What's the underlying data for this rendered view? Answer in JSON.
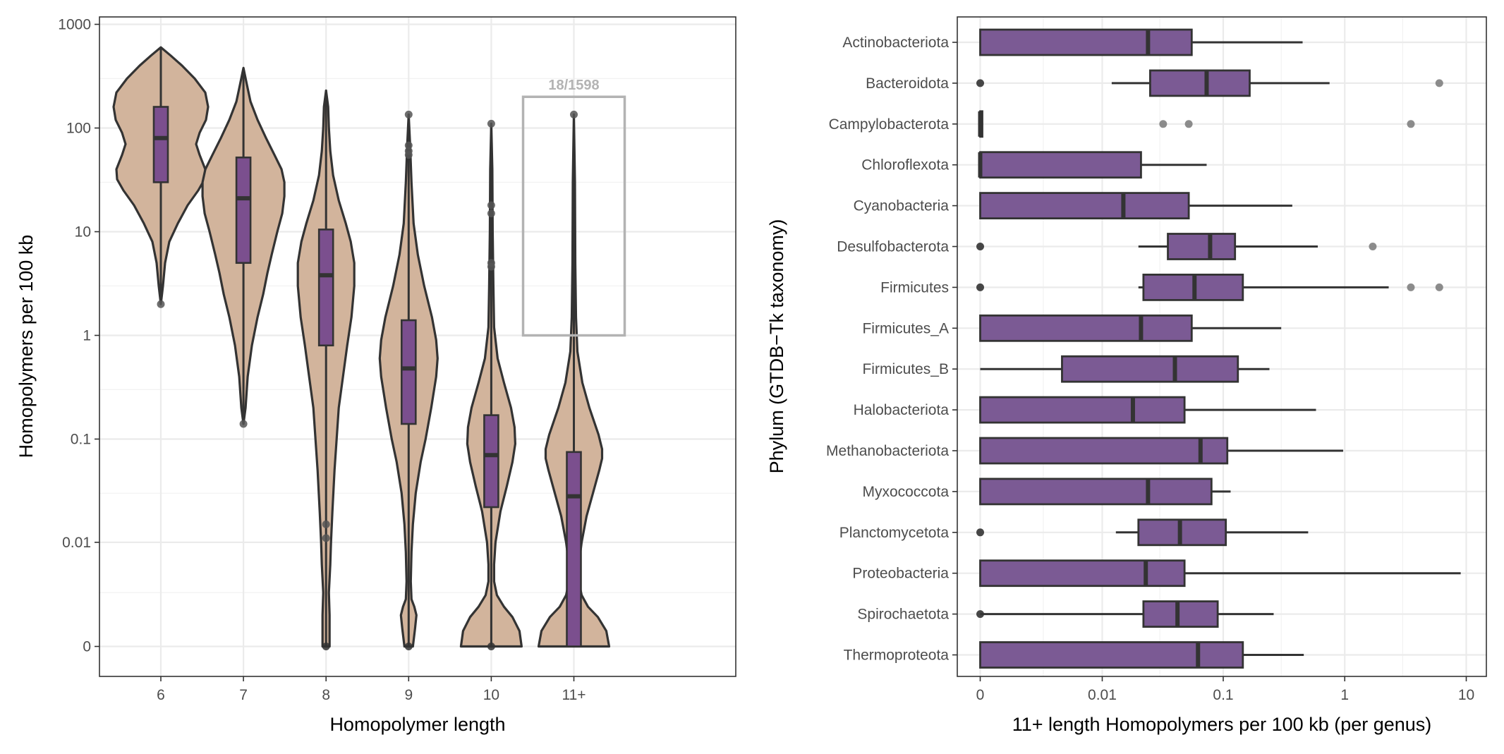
{
  "chart_data": [
    {
      "type": "violin",
      "xlabel": "Homopolymer length",
      "ylabel": "Homopolymers per 100 kb",
      "yscale": "pseudo-log",
      "ylim": [
        0,
        1000
      ],
      "y_ticks": [
        0,
        0.01,
        0.1,
        1,
        10,
        100,
        1000
      ],
      "y_tick_labels": [
        "0",
        "0.01",
        "0.1",
        "1",
        "10",
        "100",
        "1000"
      ],
      "grid": true,
      "colors": {
        "violin_fill": "#d2b49c",
        "box_fill": "#7b4f8e",
        "outline": "#333333",
        "highlight": "#b3b3b3"
      },
      "categories": [
        "6",
        "7",
        "8",
        "9",
        "10",
        "11+"
      ],
      "violins": [
        {
          "category": "6",
          "max": 600,
          "min": 2,
          "box": {
            "q1": 30,
            "median": 80,
            "q3": 160,
            "whisker_low": 2,
            "whisker_high": 600
          },
          "outliers": [
            2
          ]
        },
        {
          "category": "7",
          "max": 380,
          "min": 0.14,
          "box": {
            "q1": 5,
            "median": 21,
            "q3": 52,
            "whisker_low": 0.14,
            "whisker_high": 380
          },
          "outliers": [
            0.14
          ]
        },
        {
          "category": "8",
          "max": 230,
          "min": 0,
          "box": {
            "q1": 0.8,
            "median": 3.8,
            "q3": 10.5,
            "whisker_low": 0,
            "whisker_high": 230
          },
          "outliers": [
            0.015,
            0.011,
            0
          ]
        },
        {
          "category": "9",
          "max": 135,
          "min": 0,
          "box": {
            "q1": 0.14,
            "median": 0.48,
            "q3": 1.4,
            "whisker_low": 0,
            "whisker_high": 135
          },
          "outliers": [
            135,
            68,
            60,
            55,
            0
          ]
        },
        {
          "category": "10",
          "max": 110,
          "min": 0,
          "box": {
            "q1": 0.022,
            "median": 0.07,
            "q3": 0.17,
            "whisker_low": 0,
            "whisker_high": 110
          },
          "outliers": [
            110,
            18,
            15,
            5,
            4.6,
            0
          ]
        },
        {
          "category": "11+",
          "max": 135,
          "min": 0,
          "box": {
            "q1": 0,
            "median": 0.028,
            "q3": 0.075,
            "whisker_low": 0,
            "whisker_high": 135
          },
          "outliers": [
            135
          ]
        }
      ],
      "annotations": [
        {
          "text": "18/1598",
          "category": "11+",
          "box_ylim": [
            1,
            200
          ]
        }
      ]
    },
    {
      "type": "boxplot",
      "orientation": "horizontal",
      "xlabel": "11+ length Homopolymers per 100 kb (per genus)",
      "ylabel": "Phylum (GTDB−Tk taxonomy)",
      "xscale": "pseudo-log",
      "xlim": [
        0,
        10
      ],
      "x_ticks": [
        0,
        0.01,
        0.1,
        1,
        10
      ],
      "x_tick_labels": [
        "0",
        "0.01",
        "0.1",
        "1",
        "10"
      ],
      "grid": true,
      "colors": {
        "box_fill": "#7b5a94",
        "outline": "#333333",
        "outlier": "#808080"
      },
      "categories": [
        "Actinobacteriota",
        "Bacteroidota",
        "Campylobacterota",
        "Chloroflexota",
        "Cyanobacteria",
        "Desulfobacterota",
        "Firmicutes",
        "Firmicutes_A",
        "Firmicutes_B",
        "Halobacteriota",
        "Methanobacteriota",
        "Myxococcota",
        "Planctomycetota",
        "Proteobacteria",
        "Spirochaetota",
        "Thermoproteota"
      ],
      "boxes": [
        {
          "category": "Actinobacteriota",
          "whisker_low": 0,
          "q1": 0,
          "median": 0.024,
          "q3": 0.055,
          "whisker_high": 0.45,
          "outliers": []
        },
        {
          "category": "Bacteroidota",
          "whisker_low": 0.012,
          "q1": 0.025,
          "median": 0.073,
          "q3": 0.165,
          "whisker_high": 0.75,
          "outliers": [
            0,
            6
          ]
        },
        {
          "category": "Campylobacterota",
          "whisker_low": 0,
          "q1": 0,
          "median": 0,
          "q3": 0,
          "whisker_high": 0,
          "outliers": [
            0.032,
            0.052,
            3.5
          ]
        },
        {
          "category": "Chloroflexota",
          "whisker_low": 0,
          "q1": 0,
          "median": 0,
          "q3": 0.021,
          "whisker_high": 0.073,
          "outliers": []
        },
        {
          "category": "Cyanobacteria",
          "whisker_low": 0,
          "q1": 0,
          "median": 0.015,
          "q3": 0.052,
          "whisker_high": 0.37,
          "outliers": []
        },
        {
          "category": "Desulfobacterota",
          "whisker_low": 0.02,
          "q1": 0.035,
          "median": 0.078,
          "q3": 0.125,
          "whisker_high": 0.6,
          "outliers": [
            0,
            1.7
          ]
        },
        {
          "category": "Firmicutes",
          "whisker_low": 0.02,
          "q1": 0.022,
          "median": 0.058,
          "q3": 0.145,
          "whisker_high": 2.3,
          "outliers": [
            0,
            3.5,
            6
          ]
        },
        {
          "category": "Firmicutes_A",
          "whisker_low": 0,
          "q1": 0,
          "median": 0.021,
          "q3": 0.055,
          "whisker_high": 0.3,
          "outliers": []
        },
        {
          "category": "Firmicutes_B",
          "whisker_low": 0,
          "q1": 0.0045,
          "median": 0.04,
          "q3": 0.132,
          "whisker_high": 0.24,
          "outliers": []
        },
        {
          "category": "Halobacteriota",
          "whisker_low": 0,
          "q1": 0,
          "median": 0.018,
          "q3": 0.048,
          "whisker_high": 0.58,
          "outliers": []
        },
        {
          "category": "Methanobacteriota",
          "whisker_low": 0,
          "q1": 0,
          "median": 0.065,
          "q3": 0.108,
          "whisker_high": 0.97,
          "outliers": []
        },
        {
          "category": "Myxococcota",
          "whisker_low": 0,
          "q1": 0,
          "median": 0.024,
          "q3": 0.08,
          "whisker_high": 0.115,
          "outliers": []
        },
        {
          "category": "Planctomycetota",
          "whisker_low": 0.013,
          "q1": 0.02,
          "median": 0.044,
          "q3": 0.105,
          "whisker_high": 0.5,
          "outliers": [
            0
          ]
        },
        {
          "category": "Proteobacteria",
          "whisker_low": 0,
          "q1": 0,
          "median": 0.023,
          "q3": 0.048,
          "whisker_high": 9,
          "outliers": []
        },
        {
          "category": "Spirochaetota",
          "whisker_low": 0,
          "q1": 0.022,
          "median": 0.042,
          "q3": 0.09,
          "whisker_high": 0.26,
          "outliers": [
            0
          ]
        },
        {
          "category": "Thermoproteota",
          "whisker_low": 0,
          "q1": 0,
          "median": 0.062,
          "q3": 0.145,
          "whisker_high": 0.46,
          "outliers": []
        }
      ]
    }
  ]
}
